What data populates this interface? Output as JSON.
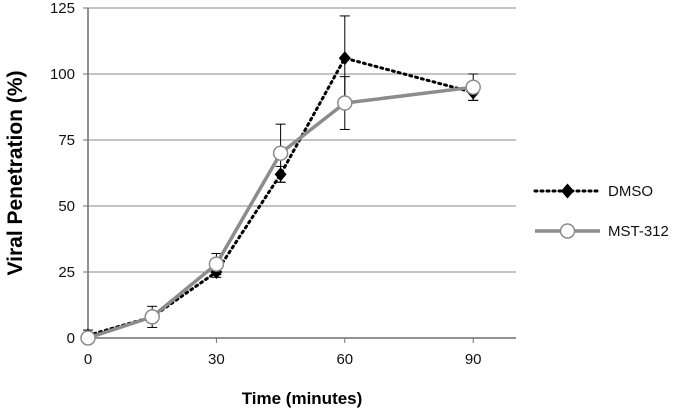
{
  "chart_data": {
    "type": "line",
    "xlabel": "Time (minutes)",
    "ylabel": "Viral Penetration (%)",
    "xlim": [
      0,
      100
    ],
    "ylim": [
      0,
      125
    ],
    "x_ticks": [
      0,
      30,
      60,
      90
    ],
    "y_ticks": [
      0,
      25,
      50,
      75,
      100,
      125
    ],
    "grid": "horizontal",
    "legend_position": "right",
    "series": [
      {
        "name": "DMSO",
        "style": "dotted",
        "marker": "diamond",
        "color": "#000000",
        "x": [
          0,
          15,
          30,
          45,
          60,
          90
        ],
        "y": [
          1,
          8,
          25,
          62,
          106,
          93
        ],
        "err": [
          2,
          2,
          2,
          3,
          16,
          3
        ]
      },
      {
        "name": "MST-312",
        "style": "solid",
        "marker": "circle-open",
        "color": "#8c8c8c",
        "x": [
          0,
          15,
          30,
          45,
          60,
          90
        ],
        "y": [
          0,
          8,
          28,
          70,
          89,
          95
        ],
        "err": [
          0,
          4,
          4,
          11,
          10,
          5
        ]
      }
    ]
  }
}
